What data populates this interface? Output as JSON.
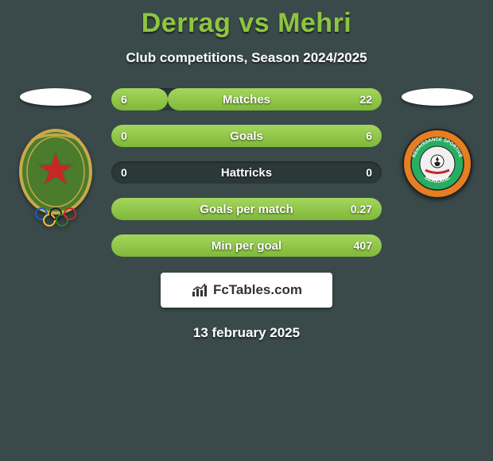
{
  "title": "Derrag vs Mehri",
  "subtitle": "Club competitions, Season 2024/2025",
  "date": "13 february 2025",
  "brand": "FcTables.com",
  "colors": {
    "background": "#3a4a4a",
    "accent": "#8dc63f",
    "bar_fill_top": "#a4d65e",
    "bar_fill_bottom": "#7fb838",
    "bar_track": "#2a3838",
    "text": "#ffffff",
    "brand_bg": "#ffffff",
    "brand_text": "#333333"
  },
  "left_crest": {
    "fill": "#4a7c2c",
    "border": "#c9a94a",
    "star": "#c62828",
    "rings": "#333333"
  },
  "right_crest": {
    "outer": "#e67e22",
    "mid": "#27ae60",
    "inner_bg": "#f0f0f0",
    "text_top": "RENAISSANCE SPORTIVE",
    "text_bottom": "BERKANE"
  },
  "stats": [
    {
      "label": "Matches",
      "left_val": "6",
      "right_val": "22",
      "left_pct": 21,
      "right_pct": 79
    },
    {
      "label": "Goals",
      "left_val": "0",
      "right_val": "6",
      "left_pct": 0,
      "right_pct": 100
    },
    {
      "label": "Hattricks",
      "left_val": "0",
      "right_val": "0",
      "left_pct": 0,
      "right_pct": 0
    },
    {
      "label": "Goals per match",
      "left_val": "",
      "right_val": "0.27",
      "left_pct": 0,
      "right_pct": 100
    },
    {
      "label": "Min per goal",
      "left_val": "",
      "right_val": "407",
      "left_pct": 0,
      "right_pct": 100
    }
  ]
}
